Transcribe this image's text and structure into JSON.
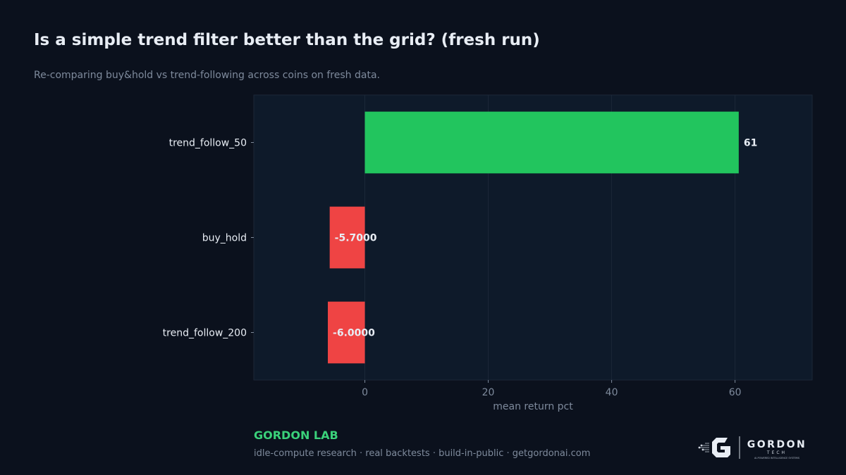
{
  "header": {
    "title": "Is a simple trend filter better than the grid? (fresh run)",
    "subtitle": "Re-comparing buy&hold vs trend-following across coins on fresh data."
  },
  "chart_data": {
    "type": "bar",
    "orientation": "horizontal",
    "categories": [
      "trend_follow_50",
      "buy_hold",
      "trend_follow_200"
    ],
    "values": [
      60.6,
      -5.7,
      -6.0
    ],
    "data_labels": [
      "61",
      "-5.7000",
      "-6.0000"
    ],
    "bar_colors": [
      "#22c55e",
      "#ef4444",
      "#ef4444"
    ],
    "xlabel": "mean return pct",
    "ylabel": "",
    "xlim": [
      -18,
      72.5
    ],
    "xticks": [
      0,
      20,
      40,
      60
    ],
    "grid": "vertical"
  },
  "footer": {
    "brand": "GORDON LAB",
    "tagline": "idle-compute research · real backtests · build-in-public · getgordonai.com",
    "logo_word": "GORDON",
    "logo_sub": "TECH",
    "logo_caption": "AI-POWERED INTELLIGENCE SYSTEMS"
  },
  "colors": {
    "background": "#0b111d",
    "plot_background": "#0e1a2a",
    "positive": "#22c55e",
    "negative": "#ef4444",
    "brand": "#3ad17a"
  }
}
